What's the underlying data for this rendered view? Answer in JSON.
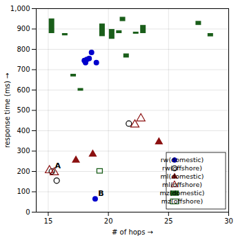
{
  "chart_data": {
    "type": "scatter",
    "xlabel": "# of hops",
    "ylabel": "response time (ms)",
    "xlim": [
      14,
      30
    ],
    "ylim": [
      0,
      1000
    ],
    "xticks": [
      15,
      20,
      25,
      30
    ],
    "yticks": [
      0,
      100,
      200,
      300,
      400,
      500,
      600,
      700,
      800,
      900,
      1000
    ],
    "grid": true,
    "legend": "lower right",
    "series": [
      {
        "name": "rw(domestic)",
        "color": "#0000cc",
        "marker": "circle",
        "x": [
          18.0,
          18.2,
          18.4,
          18.1,
          18.6,
          19.0,
          18.9
        ],
        "values": [
          745,
          750,
          755,
          735,
          785,
          735,
          65
        ]
      },
      {
        "name": "rw(offshore)",
        "color": "#000000",
        "marker": "circle-open",
        "x": [
          15.3,
          15.7,
          21.7
        ],
        "values": [
          200,
          155,
          435
        ]
      },
      {
        "name": "ml(domestic)",
        "color": "#8B1010",
        "marker": "triangle",
        "x": [
          17.3,
          18.7,
          24.2
        ],
        "values": [
          255,
          285,
          345
        ]
      },
      {
        "name": "ml(offshore)",
        "color": "#8B1010",
        "marker": "triangle-open",
        "x": [
          15.1,
          15.5,
          22.2,
          22.7
        ],
        "values": [
          205,
          195,
          430,
          460
        ]
      },
      {
        "name": "mz(domestic)",
        "color": "#1a5e1a",
        "marker": "rect",
        "x": [
          15.3,
          16.4,
          17.1,
          17.7,
          19.5,
          20.3,
          20.9,
          21.2,
          21.5,
          22.3,
          22.9,
          27.5,
          28.5
        ],
        "low": [
          878,
          867,
          665,
          595,
          863,
          850,
          878,
          937,
          758,
          875,
          878,
          918,
          862
        ],
        "high": [
          950,
          878,
          678,
          608,
          925,
          898,
          892,
          958,
          778,
          885,
          918,
          938,
          878
        ]
      },
      {
        "name": "mz(offshore)",
        "color": "#1a5e1a",
        "marker": "rect-open",
        "x": [
          19.3
        ],
        "low": [
          190
        ],
        "high": [
          212
        ]
      }
    ],
    "annotations": [
      {
        "x": 15.55,
        "y": 215,
        "text": "A"
      },
      {
        "x": 19.15,
        "y": 80,
        "text": "B"
      }
    ]
  }
}
